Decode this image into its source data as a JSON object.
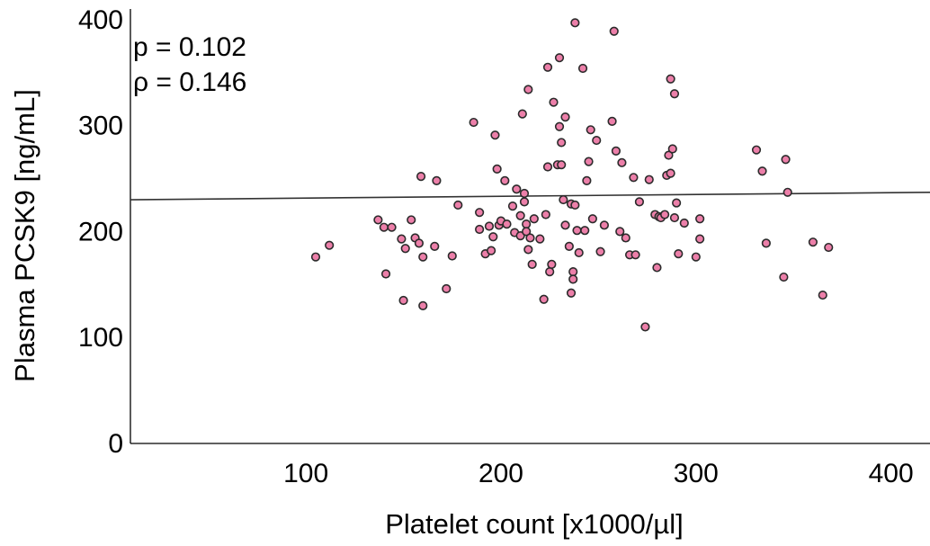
{
  "chart_data": {
    "type": "scatter",
    "xlabel": "Platelet count [x1000/µl]",
    "ylabel": "Plasma PCSK9 [ng/mL]",
    "xlim": [
      10,
      420
    ],
    "ylim": [
      0,
      410
    ],
    "x_ticks": [
      100,
      200,
      300,
      400
    ],
    "y_ticks": [
      0,
      100,
      200,
      300,
      400
    ],
    "annotations": [
      "p = 0.102",
      "ρ = 0.146"
    ],
    "grid": false,
    "point_color": "#ec7fa9",
    "regression_line": {
      "x": [
        10,
        420
      ],
      "y": [
        230,
        237
      ]
    },
    "series": [
      {
        "points": [
          [
            105,
            176
          ],
          [
            112,
            187
          ],
          [
            137,
            211
          ],
          [
            140,
            204
          ],
          [
            141,
            160
          ],
          [
            144,
            204
          ],
          [
            149,
            193
          ],
          [
            150,
            135
          ],
          [
            151,
            184
          ],
          [
            154,
            211
          ],
          [
            156,
            194
          ],
          [
            158,
            189
          ],
          [
            159,
            252
          ],
          [
            160,
            176
          ],
          [
            160,
            130
          ],
          [
            166,
            186
          ],
          [
            167,
            248
          ],
          [
            172,
            146
          ],
          [
            175,
            177
          ],
          [
            178,
            225
          ],
          [
            186,
            303
          ],
          [
            189,
            218
          ],
          [
            189,
            202
          ],
          [
            192,
            179
          ],
          [
            194,
            205
          ],
          [
            195,
            182
          ],
          [
            196,
            195
          ],
          [
            197,
            291
          ],
          [
            198,
            259
          ],
          [
            199,
            206
          ],
          [
            200,
            210
          ],
          [
            202,
            248
          ],
          [
            203,
            207
          ],
          [
            206,
            224
          ],
          [
            207,
            199
          ],
          [
            208,
            240
          ],
          [
            210,
            215
          ],
          [
            210,
            196
          ],
          [
            211,
            311
          ],
          [
            212,
            236
          ],
          [
            212,
            228
          ],
          [
            213,
            207
          ],
          [
            213,
            200
          ],
          [
            214,
            183
          ],
          [
            214,
            334
          ],
          [
            215,
            194
          ],
          [
            216,
            169
          ],
          [
            217,
            212
          ],
          [
            220,
            193
          ],
          [
            222,
            136
          ],
          [
            223,
            216
          ],
          [
            224,
            261
          ],
          [
            224,
            355
          ],
          [
            225,
            162
          ],
          [
            226,
            169
          ],
          [
            227,
            322
          ],
          [
            229,
            263
          ],
          [
            230,
            364
          ],
          [
            230,
            299
          ],
          [
            231,
            284
          ],
          [
            231,
            263
          ],
          [
            232,
            230
          ],
          [
            233,
            206
          ],
          [
            233,
            308
          ],
          [
            235,
            186
          ],
          [
            236,
            226
          ],
          [
            236,
            142
          ],
          [
            237,
            162
          ],
          [
            237,
            155
          ],
          [
            238,
            225
          ],
          [
            238,
            397
          ],
          [
            239,
            201
          ],
          [
            240,
            180
          ],
          [
            242,
            354
          ],
          [
            243,
            201
          ],
          [
            244,
            248
          ],
          [
            245,
            266
          ],
          [
            246,
            296
          ],
          [
            247,
            212
          ],
          [
            249,
            286
          ],
          [
            251,
            181
          ],
          [
            253,
            206
          ],
          [
            257,
            304
          ],
          [
            258,
            389
          ],
          [
            259,
            276
          ],
          [
            261,
            200
          ],
          [
            262,
            265
          ],
          [
            264,
            194
          ],
          [
            266,
            178
          ],
          [
            268,
            251
          ],
          [
            269,
            178
          ],
          [
            271,
            228
          ],
          [
            274,
            110
          ],
          [
            276,
            249
          ],
          [
            279,
            216
          ],
          [
            280,
            166
          ],
          [
            281,
            214
          ],
          [
            282,
            213
          ],
          [
            284,
            216
          ],
          [
            285,
            253
          ],
          [
            286,
            272
          ],
          [
            287,
            344
          ],
          [
            287,
            255
          ],
          [
            288,
            278
          ],
          [
            289,
            330
          ],
          [
            289,
            213
          ],
          [
            290,
            227
          ],
          [
            291,
            179
          ],
          [
            294,
            208
          ],
          [
            300,
            176
          ],
          [
            302,
            193
          ],
          [
            302,
            212
          ],
          [
            331,
            277
          ],
          [
            334,
            257
          ],
          [
            336,
            189
          ],
          [
            345,
            157
          ],
          [
            346,
            268
          ],
          [
            347,
            237
          ],
          [
            360,
            190
          ],
          [
            365,
            140
          ],
          [
            368,
            185
          ]
        ]
      }
    ]
  }
}
